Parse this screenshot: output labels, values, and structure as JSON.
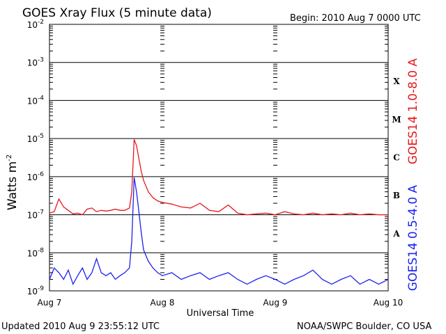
{
  "header": {
    "title": "GOES Xray Flux (5 minute data)",
    "begin": "Begin:  2010 Aug 7 0000 UTC"
  },
  "footer": {
    "updated": "Updated 2010 Aug  9 23:55:12 UTC",
    "source": "NOAA/SWPC Boulder, CO USA"
  },
  "chart_data": {
    "type": "line",
    "title": "GOES Xray Flux (5 minute data)",
    "xlabel": "Universal Time",
    "ylabel": "Watts m",
    "ylabel_sup": "-2",
    "y_scale": "log",
    "ylim": [
      1e-09,
      0.01
    ],
    "y_ticks": [
      {
        "base": "10",
        "exp": "-2",
        "value": 0.01
      },
      {
        "base": "10",
        "exp": "-3",
        "value": 0.001
      },
      {
        "base": "10",
        "exp": "-4",
        "value": 0.0001
      },
      {
        "base": "10",
        "exp": "-5",
        "value": 1e-05
      },
      {
        "base": "10",
        "exp": "-6",
        "value": 1e-06
      },
      {
        "base": "10",
        "exp": "-7",
        "value": 1e-07
      },
      {
        "base": "10",
        "exp": "-8",
        "value": 1e-08
      },
      {
        "base": "10",
        "exp": "-9",
        "value": 1e-09
      }
    ],
    "x_unit": "hours since 2010 Aug 7 0000 UTC",
    "xlim": [
      0,
      72
    ],
    "x_ticks": [
      {
        "label": "Aug 7",
        "value": 0
      },
      {
        "label": "Aug 8",
        "value": 24
      },
      {
        "label": "Aug 9",
        "value": 48
      },
      {
        "label": "Aug 10",
        "value": 72
      }
    ],
    "grid": true,
    "flare_classes": [
      {
        "label": "X",
        "value": 0.0001
      },
      {
        "label": "M",
        "value": 1e-05
      },
      {
        "label": "C",
        "value": 1e-06
      },
      {
        "label": "B",
        "value": 1e-07
      },
      {
        "label": "A",
        "value": 1e-08
      }
    ],
    "series": [
      {
        "name": "GOES14 1.0-8.0 A",
        "color": "#e8161b",
        "x": [
          0,
          1,
          2,
          3,
          4,
          5,
          6,
          7,
          8,
          9,
          10,
          11,
          12,
          13,
          14,
          15,
          16,
          17,
          17.5,
          18,
          18.5,
          19,
          19.5,
          20,
          21,
          22,
          23,
          24,
          26,
          28,
          30,
          32,
          34,
          36,
          38,
          40,
          42,
          44,
          46,
          48,
          50,
          52,
          54,
          56,
          58,
          60,
          62,
          64,
          66,
          68,
          70,
          72
        ],
        "y": [
          1.1e-07,
          1.2e-07,
          2.6e-07,
          1.6e-07,
          1.3e-07,
          1.05e-07,
          1.1e-07,
          1e-07,
          1.4e-07,
          1.5e-07,
          1.2e-07,
          1.3e-07,
          1.25e-07,
          1.3e-07,
          1.4e-07,
          1.3e-07,
          1.3e-07,
          1.5e-07,
          4e-07,
          9.5e-06,
          6.5e-06,
          3e-06,
          1.4e-06,
          8e-07,
          4e-07,
          2.8e-07,
          2.3e-07,
          2.1e-07,
          1.9e-07,
          1.6e-07,
          1.5e-07,
          2e-07,
          1.3e-07,
          1.2e-07,
          1.8e-07,
          1.1e-07,
          1e-07,
          1.05e-07,
          1.1e-07,
          1e-07,
          1.2e-07,
          1.05e-07,
          1e-07,
          1.1e-07,
          1e-07,
          1.05e-07,
          1e-07,
          1.1e-07,
          1e-07,
          1.05e-07,
          1e-07,
          1e-07
        ]
      },
      {
        "name": "GOES14 0.5-4.0 A",
        "color": "#1a22ee",
        "x": [
          0,
          1,
          2,
          3,
          4,
          5,
          6,
          7,
          8,
          9,
          10,
          11,
          12,
          13,
          14,
          15,
          16,
          17,
          17.5,
          18,
          18.5,
          19,
          19.5,
          20,
          21,
          22,
          23,
          24,
          26,
          28,
          30,
          32,
          34,
          36,
          38,
          40,
          42,
          44,
          46,
          48,
          50,
          52,
          54,
          56,
          58,
          60,
          62,
          64,
          66,
          68,
          70,
          72
        ],
        "y": [
          2e-09,
          4e-09,
          3e-09,
          2e-09,
          3.5e-09,
          1.5e-09,
          2.5e-09,
          4e-09,
          2e-09,
          3e-09,
          7e-09,
          3e-09,
          2.5e-09,
          3e-09,
          2e-09,
          2.5e-09,
          3e-09,
          4e-09,
          2e-08,
          9.5e-07,
          4e-07,
          1.2e-07,
          3.5e-08,
          1.2e-08,
          6e-09,
          4e-09,
          3e-09,
          2.5e-09,
          3e-09,
          2e-09,
          2.5e-09,
          3e-09,
          2e-09,
          2.5e-09,
          3e-09,
          2e-09,
          1.5e-09,
          2e-09,
          2.5e-09,
          2e-09,
          1.5e-09,
          2e-09,
          2.5e-09,
          3.5e-09,
          2e-09,
          1.5e-09,
          2e-09,
          2.5e-09,
          1.5e-09,
          2e-09,
          1.5e-09,
          2e-09
        ]
      }
    ]
  }
}
